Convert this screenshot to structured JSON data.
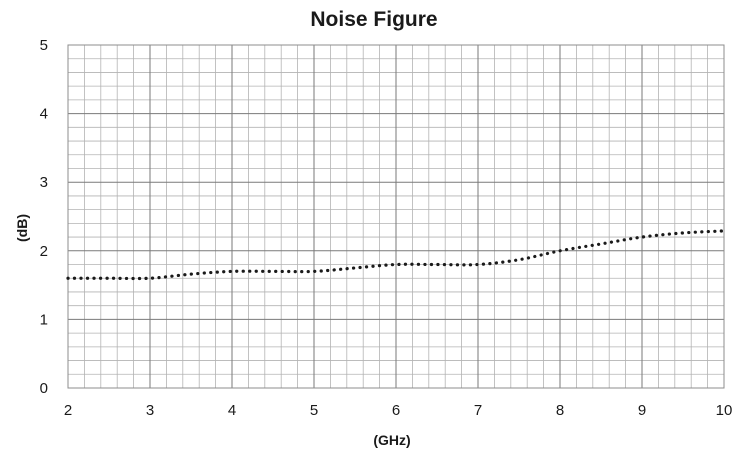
{
  "chart_data": {
    "type": "line",
    "title": "Noise Figure",
    "xlabel": "(GHz)",
    "ylabel": "(dB)",
    "xlim": [
      2,
      10
    ],
    "ylim": [
      0,
      5
    ],
    "x_ticks": [
      "2",
      "3",
      "4",
      "5",
      "6",
      "7",
      "8",
      "9",
      "10"
    ],
    "y_ticks": [
      "0",
      "1",
      "2",
      "3",
      "4",
      "5"
    ],
    "grid": true,
    "series": [
      {
        "line_style": "dotted",
        "color": "#1a1a1a",
        "x": [
          2.0,
          2.5,
          3.0,
          3.5,
          4.0,
          4.5,
          5.0,
          5.5,
          6.0,
          6.5,
          7.0,
          7.5,
          8.0,
          8.5,
          9.0,
          9.5,
          10.0
        ],
        "y": [
          1.6,
          1.6,
          1.6,
          1.66,
          1.7,
          1.7,
          1.7,
          1.75,
          1.8,
          1.8,
          1.8,
          1.87,
          2.0,
          2.1,
          2.2,
          2.26,
          2.29
        ]
      }
    ]
  }
}
